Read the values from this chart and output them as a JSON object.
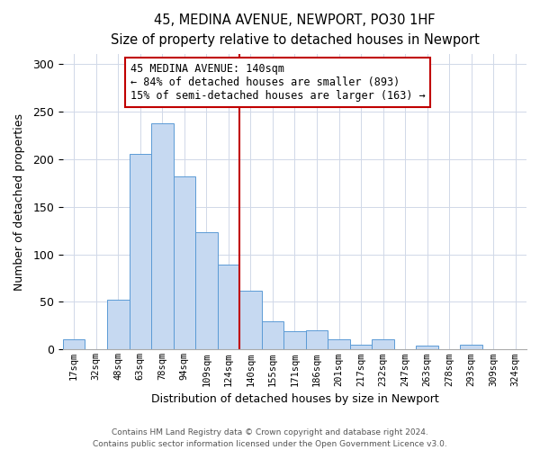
{
  "title": "45, MEDINA AVENUE, NEWPORT, PO30 1HF",
  "subtitle": "Size of property relative to detached houses in Newport",
  "xlabel": "Distribution of detached houses by size in Newport",
  "ylabel": "Number of detached properties",
  "bin_labels": [
    "17sqm",
    "32sqm",
    "48sqm",
    "63sqm",
    "78sqm",
    "94sqm",
    "109sqm",
    "124sqm",
    "140sqm",
    "155sqm",
    "171sqm",
    "186sqm",
    "201sqm",
    "217sqm",
    "232sqm",
    "247sqm",
    "263sqm",
    "278sqm",
    "293sqm",
    "309sqm",
    "324sqm"
  ],
  "bar_values": [
    11,
    0,
    52,
    205,
    238,
    182,
    123,
    89,
    62,
    30,
    19,
    20,
    11,
    5,
    11,
    0,
    4,
    0,
    5,
    0,
    0
  ],
  "bar_color": "#c6d9f1",
  "bar_edge_color": "#5b9bd5",
  "vline_x_index": 8,
  "vline_color": "#c00000",
  "ylim": [
    0,
    310
  ],
  "yticks": [
    0,
    50,
    100,
    150,
    200,
    250,
    300
  ],
  "annotation_title": "45 MEDINA AVENUE: 140sqm",
  "annotation_line1": "← 84% of detached houses are smaller (893)",
  "annotation_line2": "15% of semi-detached houses are larger (163) →",
  "annotation_box_color": "#ffffff",
  "annotation_box_edge_color": "#c00000",
  "footer_line1": "Contains HM Land Registry data © Crown copyright and database right 2024.",
  "footer_line2": "Contains public sector information licensed under the Open Government Licence v3.0."
}
